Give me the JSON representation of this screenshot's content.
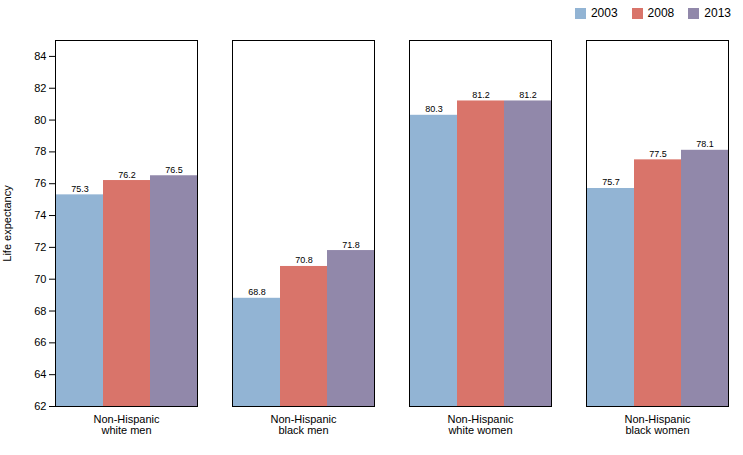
{
  "chart_data": {
    "type": "bar",
    "categories": [
      "Non-Hispanic\nwhite men",
      "Non-Hispanic\nblack men",
      "Non-Hispanic\nwhite women",
      "Non-Hispanic\nblack women"
    ],
    "series": [
      {
        "name": "2003",
        "color": "#92B4D4",
        "values": [
          75.3,
          68.8,
          80.3,
          75.7
        ]
      },
      {
        "name": "2008",
        "color": "#D9746A",
        "values": [
          76.2,
          70.8,
          81.2,
          77.5
        ]
      },
      {
        "name": "2013",
        "color": "#9188AA",
        "values": [
          76.5,
          71.8,
          81.2,
          78.1
        ]
      }
    ],
    "ylabel": "Life expectancy",
    "ylim": [
      62,
      85
    ],
    "yticks": [
      62,
      64,
      66,
      68,
      70,
      72,
      74,
      76,
      78,
      80,
      82,
      84
    ],
    "grid": false,
    "legend": "upper right",
    "data_labels": true
  }
}
